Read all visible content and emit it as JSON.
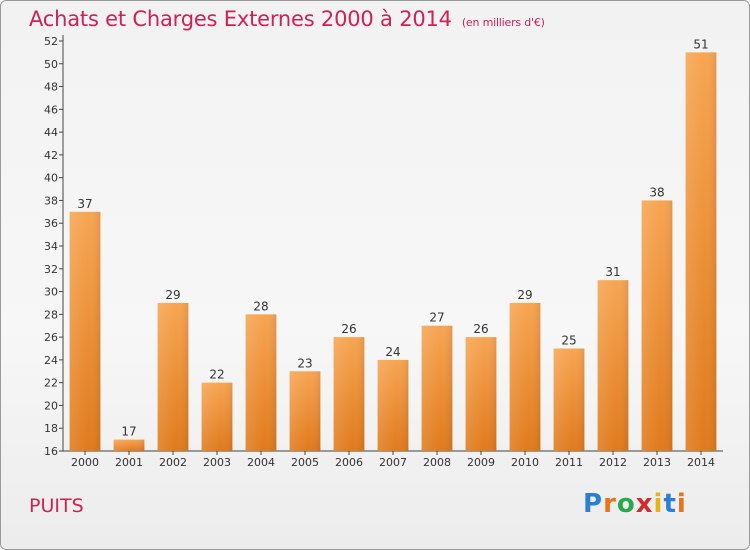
{
  "title": "Achats et Charges Externes 2000 à 2014",
  "unit_note": "(en milliers d'€)",
  "commune": "PUITS",
  "logo": {
    "text": "Proxiti",
    "letters": [
      "P",
      "r",
      "o",
      "x",
      "i",
      "t",
      "i"
    ],
    "colors": [
      "#2a7fd4",
      "#e8731a",
      "#2aa84a",
      "#d42a2a",
      "#e8b21a",
      "#2a7fd4",
      "#e8731a"
    ]
  },
  "colors": {
    "bar_top": "#f7a552",
    "bar_bottom": "#e07a1c",
    "title": "#cc2255"
  },
  "chart_data": {
    "type": "bar",
    "categories": [
      "2000",
      "2001",
      "2002",
      "2003",
      "2004",
      "2005",
      "2006",
      "2007",
      "2008",
      "2009",
      "2010",
      "2011",
      "2012",
      "2013",
      "2014"
    ],
    "values": [
      37,
      17,
      29,
      22,
      28,
      23,
      26,
      24,
      27,
      26,
      29,
      25,
      31,
      38,
      51
    ],
    "title": "Achats et Charges Externes 2000 à 2014",
    "subtitle": "(en milliers d'€)",
    "ylim": [
      16,
      52
    ],
    "yticks": [
      "16",
      "18",
      "20",
      "22",
      "24",
      "26",
      "28",
      "30",
      "32",
      "34",
      "36",
      "38",
      "40",
      "42",
      "44",
      "46",
      "48",
      "50",
      "52"
    ],
    "grid": false
  }
}
